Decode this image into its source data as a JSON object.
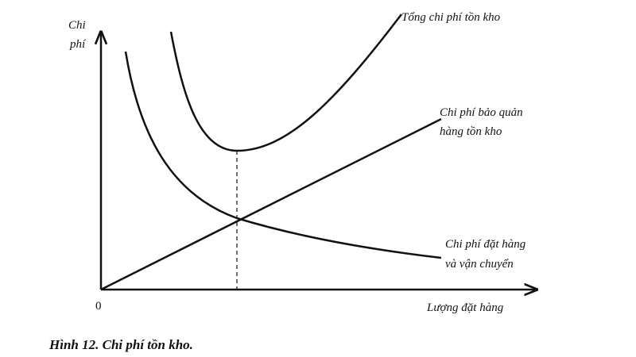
{
  "axis": {
    "y_label": [
      "Chi",
      "phí"
    ],
    "origin": "0",
    "x_label": "Lượng đặt hàng"
  },
  "curves": [
    {
      "label": [
        "Tổng chi phí tồn kho"
      ]
    },
    {
      "label": [
        "Chi phí bảo quản",
        "hàng tồn kho"
      ]
    },
    {
      "label": [
        "Chi phí đặt hàng",
        "và vận chuyển"
      ]
    }
  ],
  "caption": "Hình 12. Chi phí tồn kho."
}
